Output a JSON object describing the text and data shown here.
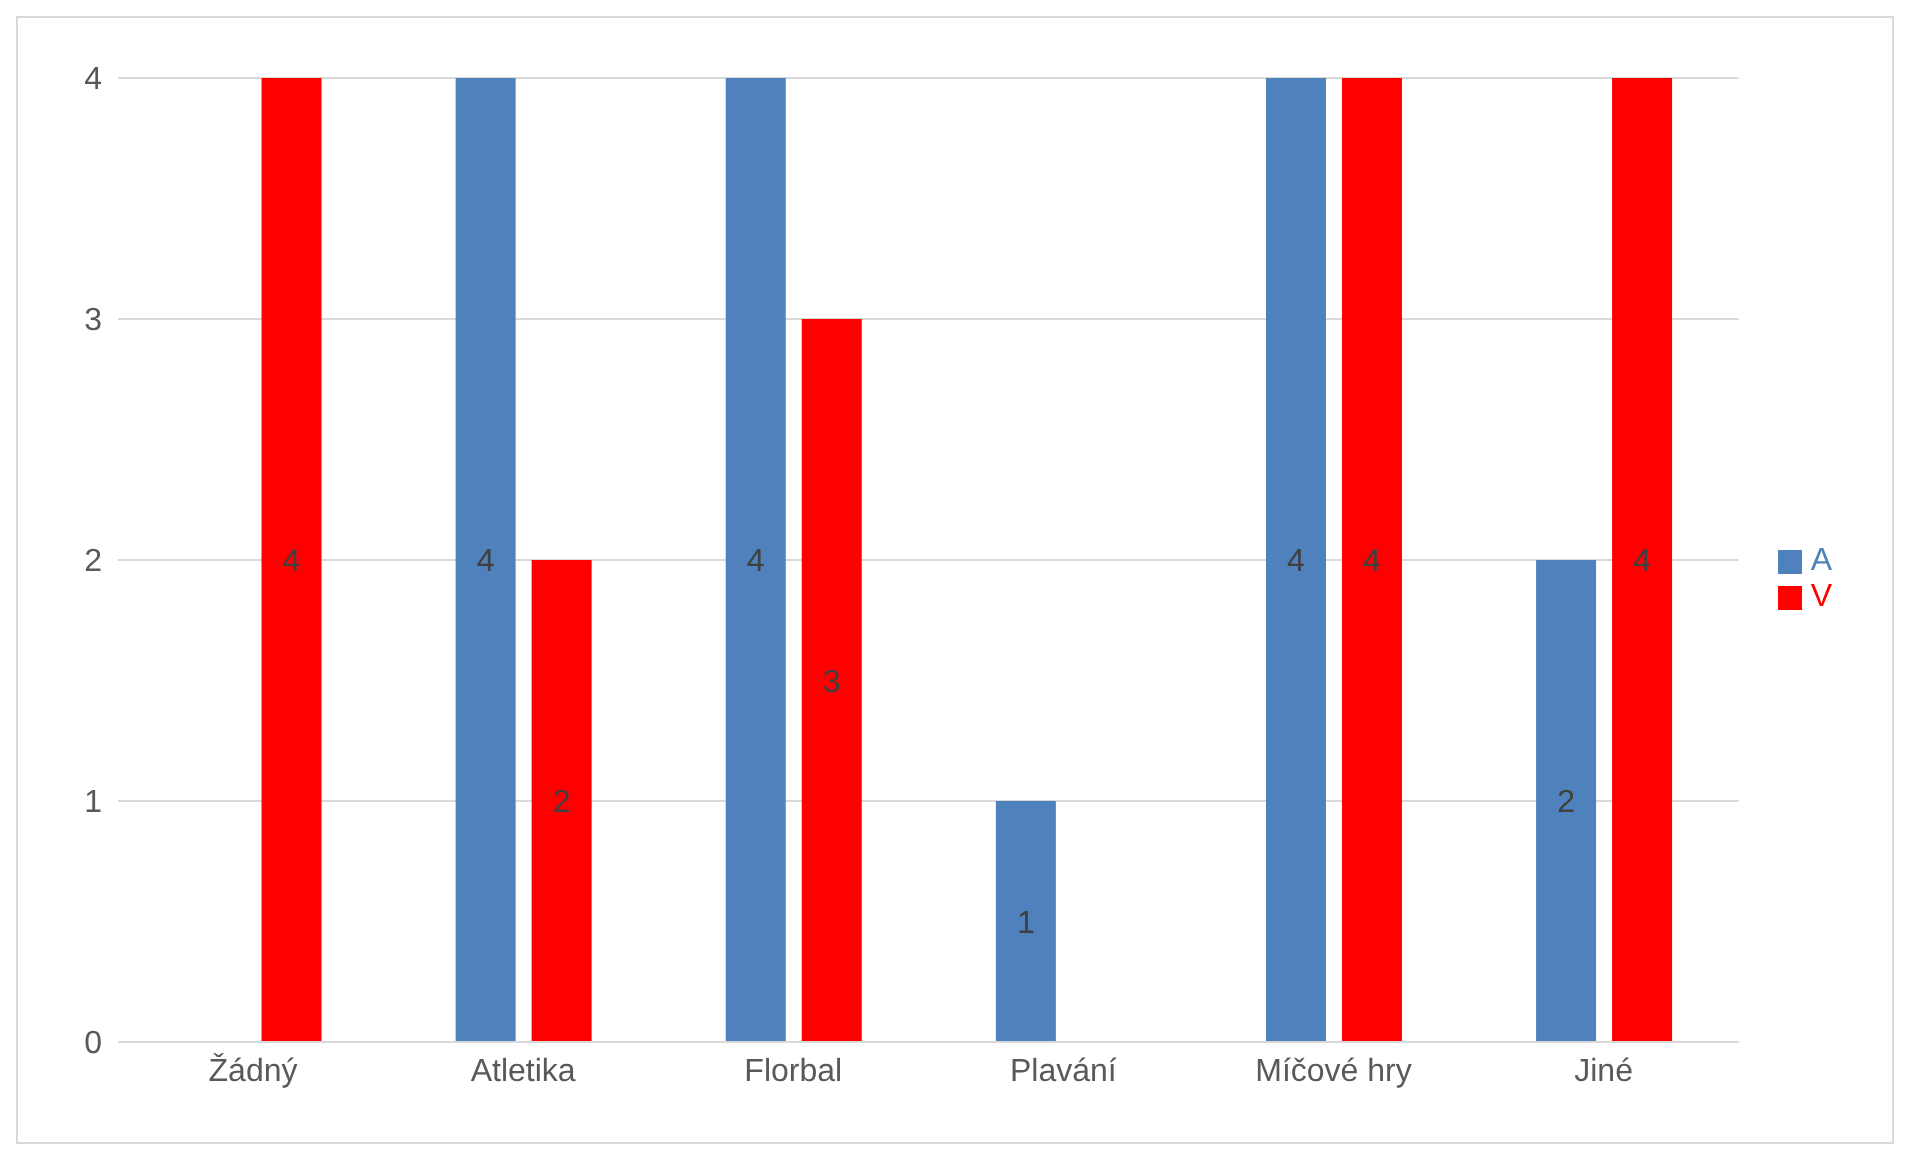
{
  "chart_data": {
    "type": "bar",
    "categories": [
      "Žádný",
      "Atletika",
      "Florbal",
      "Plavání",
      "Míčové hry",
      "Jiné"
    ],
    "series": [
      {
        "name": "A",
        "color": "#4f81bd",
        "values": [
          null,
          4,
          4,
          1,
          4,
          2
        ]
      },
      {
        "name": "V",
        "color": "#ff0000",
        "values": [
          4,
          2,
          3,
          null,
          4,
          4
        ]
      }
    ],
    "ylim": [
      0,
      4
    ],
    "yticks": [
      0,
      1,
      2,
      3,
      4
    ],
    "grid": "y",
    "legend": "right",
    "data_labels": true
  }
}
